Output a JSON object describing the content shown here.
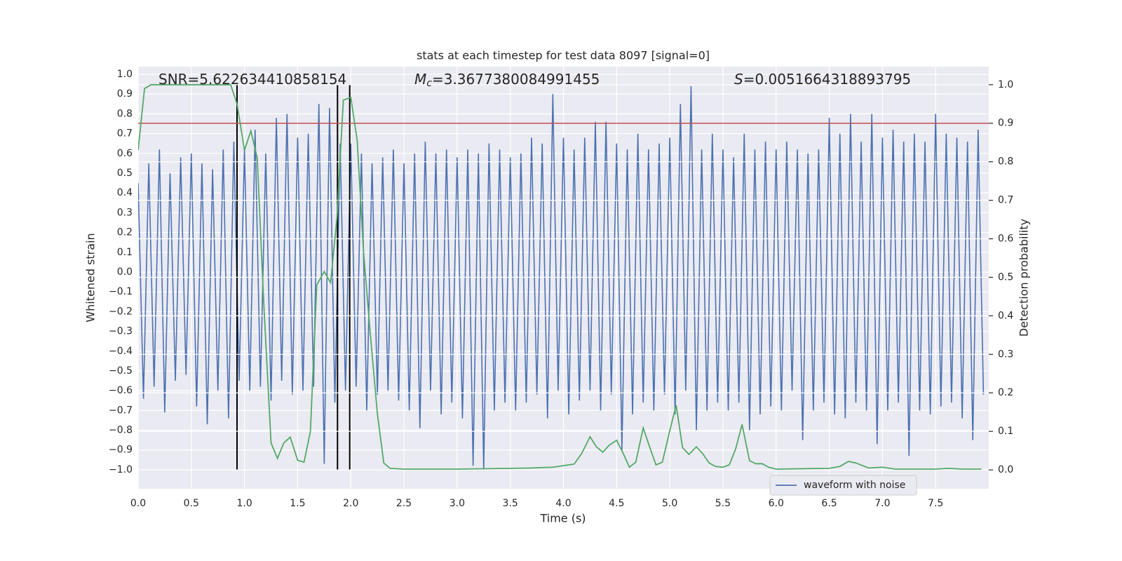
{
  "chart_data": {
    "type": "line",
    "title": "stats at each timestep for test data 8097 [signal=0]",
    "xlabel": "Time (s)",
    "ylabel": "Whitened strain",
    "y2label": "Detection probability",
    "annotations": [
      [
        "SNR=5.622634410858154"
      ],
      [
        "M",
        "c",
        "=3.3677380084991455"
      ],
      [
        "S",
        "=0.0051664318893795"
      ]
    ],
    "xlim": [
      0,
      8.0
    ],
    "ylim": [
      -1.096,
      1.039
    ],
    "y2lim": [
      -0.049,
      1.047
    ],
    "xticks": [
      {
        "value": 0,
        "label": "0.0"
      },
      0.5,
      {
        "value": 1,
        "label": "1.0"
      },
      1.5,
      {
        "value": 2,
        "label": "2.0"
      },
      2.5,
      {
        "value": 3,
        "label": "3.0"
      },
      3.5,
      {
        "value": 4,
        "label": "4.0"
      },
      4.5,
      {
        "value": 5,
        "label": "5.0"
      },
      5.5,
      {
        "value": 6,
        "label": "6.0"
      },
      6.5,
      {
        "value": 7,
        "label": "7.0"
      },
      7.5
    ],
    "yticks": [
      {
        "value": -1,
        "label": "−1.0"
      },
      {
        "value": -0.9,
        "label": "−0.9"
      },
      {
        "value": -0.8,
        "label": "−0.8"
      },
      {
        "value": -0.7,
        "label": "−0.7"
      },
      {
        "value": -0.6,
        "label": "−0.6"
      },
      {
        "value": -0.5,
        "label": "−0.5"
      },
      {
        "value": -0.4,
        "label": "−0.4"
      },
      {
        "value": -0.3,
        "label": "−0.3"
      },
      {
        "value": -0.2,
        "label": "−0.2"
      },
      {
        "value": -0.1,
        "label": "−0.1"
      },
      {
        "value": 0,
        "label": "0.0"
      },
      0.1,
      0.2,
      0.3,
      0.4,
      0.5,
      0.6,
      0.7,
      0.8,
      0.9,
      {
        "value": 1,
        "label": "1.0"
      }
    ],
    "y2ticks": [
      {
        "value": 0,
        "label": "0.0"
      },
      0.1,
      0.2,
      0.3,
      0.4,
      0.5,
      0.6,
      0.7,
      0.8,
      0.9,
      {
        "value": 1,
        "label": "1.0"
      }
    ],
    "grid": true,
    "legend": "lower right",
    "series": [
      {
        "name": "waveform with noise",
        "color": "#4c72b0",
        "x": [
          0,
          0.05,
          0.1,
          0.15,
          0.2,
          0.25,
          0.3,
          0.35,
          0.4,
          0.45,
          0.5,
          0.55,
          0.6,
          0.65,
          0.7,
          0.75,
          0.8,
          0.85,
          0.9,
          0.95,
          1,
          1.05,
          1.1,
          1.15,
          1.2,
          1.25,
          1.3,
          1.35,
          1.4,
          1.45,
          1.5,
          1.55,
          1.6,
          1.65,
          1.7,
          1.75,
          1.8,
          1.85,
          1.9,
          1.95,
          2,
          2.05,
          2.1,
          2.15,
          2.2,
          2.25,
          2.3,
          2.35,
          2.4,
          2.45,
          2.5,
          2.55,
          2.6,
          2.65,
          2.7,
          2.75,
          2.8,
          2.85,
          2.9,
          2.95,
          3,
          3.05,
          3.1,
          3.15,
          3.2,
          3.25,
          3.3,
          3.35,
          3.4,
          3.45,
          3.5,
          3.55,
          3.6,
          3.65,
          3.7,
          3.75,
          3.8,
          3.85,
          3.9,
          3.95,
          4,
          4.05,
          4.1,
          4.15,
          4.2,
          4.25,
          4.3,
          4.35,
          4.4,
          4.45,
          4.5,
          4.55,
          4.6,
          4.65,
          4.7,
          4.75,
          4.8,
          4.85,
          4.9,
          4.95,
          5,
          5.05,
          5.1,
          5.15,
          5.2,
          5.25,
          5.3,
          5.35,
          5.4,
          5.45,
          5.5,
          5.55,
          5.6,
          5.65,
          5.7,
          5.75,
          5.8,
          5.85,
          5.9,
          5.95,
          6,
          6.05,
          6.1,
          6.15,
          6.2,
          6.25,
          6.3,
          6.35,
          6.4,
          6.45,
          6.5,
          6.55,
          6.6,
          6.65,
          6.7,
          6.75,
          6.8,
          6.85,
          6.9,
          6.95,
          7,
          7.05,
          7.1,
          7.15,
          7.2,
          7.25,
          7.3,
          7.35,
          7.4,
          7.45,
          7.5,
          7.55,
          7.6,
          7.65,
          7.7,
          7.75,
          7.8,
          7.85,
          7.9,
          7.95
        ],
        "values": [
          0.45,
          -0.64,
          0.55,
          -0.58,
          0.62,
          -0.71,
          0.5,
          -0.55,
          0.58,
          -0.52,
          0.6,
          -0.68,
          0.55,
          -0.77,
          0.52,
          -0.6,
          0.62,
          -0.74,
          0.66,
          -0.55,
          0.62,
          -0.6,
          0.72,
          -0.58,
          0.6,
          -0.65,
          0.78,
          -0.55,
          0.8,
          -0.62,
          0.68,
          -0.6,
          0.7,
          -0.58,
          0.85,
          -0.97,
          0.83,
          -0.66,
          0.65,
          -0.6,
          0.65,
          -0.58,
          0.6,
          -0.7,
          0.55,
          -0.62,
          0.58,
          -0.6,
          0.62,
          -0.65,
          0.55,
          -0.7,
          0.6,
          -0.79,
          0.66,
          -0.6,
          0.6,
          -0.72,
          0.62,
          -0.66,
          0.58,
          -0.74,
          0.62,
          -0.98,
          0.6,
          -1.0,
          0.65,
          -0.7,
          0.62,
          -0.66,
          0.58,
          -0.7,
          0.6,
          -0.66,
          0.68,
          -0.62,
          0.65,
          -0.74,
          0.9,
          -0.6,
          0.68,
          -0.72,
          0.62,
          -0.65,
          0.68,
          -0.6,
          0.76,
          -0.7,
          0.76,
          -0.62,
          0.65,
          -0.9,
          0.62,
          -0.72,
          0.7,
          -0.66,
          0.62,
          -0.7,
          0.65,
          -0.62,
          0.68,
          -0.72,
          0.85,
          -0.6,
          0.94,
          -0.8,
          0.62,
          -0.7,
          0.7,
          -0.66,
          0.62,
          -0.7,
          0.58,
          -0.66,
          0.7,
          -0.8,
          0.62,
          -0.72,
          0.66,
          -0.68,
          0.62,
          -0.7,
          0.66,
          -0.6,
          0.62,
          -0.85,
          0.6,
          -0.7,
          0.62,
          -0.66,
          0.78,
          -0.72,
          0.7,
          -0.74,
          0.8,
          -0.66,
          0.66,
          -0.7,
          0.8,
          -0.87,
          0.68,
          -0.7,
          0.72,
          -0.66,
          0.66,
          -0.93,
          0.7,
          -0.7,
          0.66,
          -0.72,
          0.8,
          -0.68,
          0.7,
          -0.66,
          0.68,
          -0.74,
          0.66,
          -0.85,
          0.72,
          -0.62
        ]
      }
    ],
    "probability": {
      "color": "#55a868",
      "axis": "y2",
      "x": [
        0,
        0.06,
        0.12,
        0.87,
        0.93,
        1.0,
        1.06,
        1.12,
        1.18,
        1.25,
        1.31,
        1.37,
        1.43,
        1.5,
        1.56,
        1.62,
        1.68,
        1.75,
        1.81,
        1.87,
        1.93,
        2.0,
        2.06,
        2.12,
        2.18,
        2.25,
        2.31,
        2.37,
        2.5,
        3.0,
        3.5,
        3.7,
        3.9,
        4.0,
        4.1,
        4.17,
        4.25,
        4.31,
        4.37,
        4.43,
        4.5,
        4.56,
        4.62,
        4.68,
        4.75,
        4.81,
        4.87,
        4.93,
        5.0,
        5.06,
        5.12,
        5.18,
        5.25,
        5.31,
        5.37,
        5.43,
        5.5,
        5.56,
        5.62,
        5.68,
        5.75,
        5.81,
        5.87,
        5.93,
        6.0,
        6.5,
        6.6,
        6.68,
        6.75,
        6.87,
        7.0,
        7.12,
        7.5,
        7.62,
        7.75,
        7.93
      ],
      "values": [
        0.83,
        0.99,
        1.0,
        1.0,
        0.95,
        0.83,
        0.88,
        0.81,
        0.44,
        0.07,
        0.03,
        0.07,
        0.085,
        0.025,
        0.02,
        0.1,
        0.48,
        0.515,
        0.486,
        0.656,
        0.96,
        0.967,
        0.856,
        0.565,
        0.364,
        0.146,
        0.018,
        0.004,
        0.002,
        0.002,
        0.004,
        0.005,
        0.007,
        0.011,
        0.015,
        0.042,
        0.086,
        0.06,
        0.046,
        0.064,
        0.077,
        0.044,
        0.007,
        0.02,
        0.109,
        0.06,
        0.013,
        0.02,
        0.102,
        0.168,
        0.058,
        0.04,
        0.06,
        0.042,
        0.018,
        0.009,
        0.007,
        0.013,
        0.055,
        0.118,
        0.024,
        0.016,
        0.016,
        0.007,
        0.002,
        0.004,
        0.009,
        0.022,
        0.018,
        0.005,
        0.007,
        0.002,
        0.002,
        0.004,
        0.002,
        0.002
      ]
    },
    "threshold": {
      "value": 0.9,
      "axis": "y2",
      "color": "#c44e52"
    },
    "vlines": {
      "x": [
        0.93,
        1.875,
        1.99
      ],
      "y2range": [
        0,
        1
      ],
      "color": "#000000"
    }
  }
}
